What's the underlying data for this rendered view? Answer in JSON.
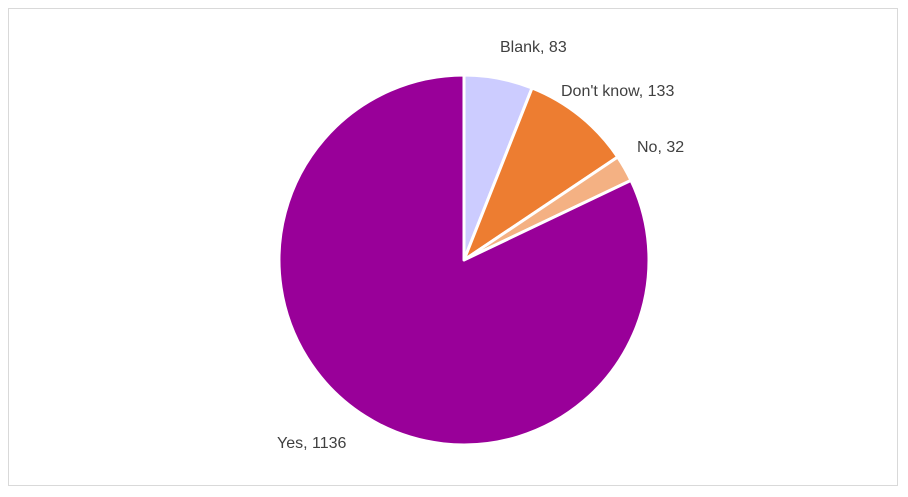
{
  "chart_data": {
    "type": "pie",
    "title": "",
    "start_angle_deg": 0,
    "direction": "clockwise",
    "legend": "none",
    "slices": [
      {
        "name": "Blank",
        "value": 83,
        "label": "Blank, 83",
        "color": "#ccccff"
      },
      {
        "name": "Don't know",
        "value": 133,
        "label": "Don't know, 133",
        "color": "#ed7d31"
      },
      {
        "name": "No",
        "value": 32,
        "label": "No, 32",
        "color": "#f4b183"
      },
      {
        "name": "Yes",
        "value": 1136,
        "label": "Yes, 1136",
        "color": "#990099"
      }
    ]
  }
}
